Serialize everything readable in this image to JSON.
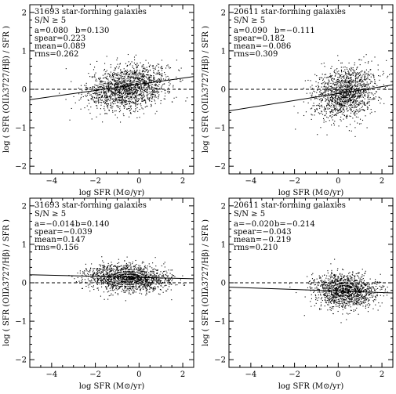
{
  "chart_data": [
    {
      "type": "scatter",
      "title": "31693 star-forming galaxies",
      "subtitle": "S/N ≥ 5",
      "xlabel": "log SFR (M⊙/yr)",
      "ylabel": "log ( SFR (OIIλ3727/Hβ) / SFR )",
      "xlim": [
        -5,
        2.5
      ],
      "ylim": [
        -2.2,
        2.2
      ],
      "xticks": [
        -4,
        -2,
        0,
        2
      ],
      "yticks": [
        -2,
        -1,
        0,
        1,
        2
      ],
      "stats": [
        "a=0.080",
        "b=0.130",
        "spear=0.223",
        "mean=0.089",
        "rms=0.262"
      ],
      "fit": {
        "a": 0.08,
        "b": 0.13
      },
      "cloud": {
        "x_center": -0.5,
        "y_center": 0.05,
        "x_spread": 0.9,
        "y_spread": 0.27,
        "n": 1800
      },
      "reference_line_y": 0
    },
    {
      "type": "scatter",
      "title": "20611 star-forming galaxies",
      "subtitle": "S/N ≥ 5",
      "xlabel": "log SFR (M⊙/yr)",
      "ylabel": "log ( SFR (OIIλ3727/Hβ) / SFR )",
      "xlim": [
        -5,
        2.5
      ],
      "ylim": [
        -2.2,
        2.2
      ],
      "xticks": [
        -4,
        -2,
        0,
        2
      ],
      "yticks": [
        -2,
        -1,
        0,
        1,
        2
      ],
      "stats": [
        "a=0.090",
        "b=−0.111",
        "spear=0.182",
        "mean=−0.086",
        "rms=0.309"
      ],
      "fit": {
        "a": 0.09,
        "b": -0.111
      },
      "cloud": {
        "x_center": 0.3,
        "y_center": -0.1,
        "x_spread": 0.7,
        "y_spread": 0.32,
        "n": 1500
      },
      "reference_line_y": 0
    },
    {
      "type": "scatter",
      "title": "31693 star-forming galaxies",
      "subtitle": "S/N ≥ 5",
      "xlabel": "log SFR (M⊙/yr)",
      "ylabel": "log ( SFR (OIIλ3727/Hβ) / SFR )",
      "xlim": [
        -5,
        2.5
      ],
      "ylim": [
        -2.2,
        2.2
      ],
      "xticks": [
        -4,
        -2,
        0,
        2
      ],
      "yticks": [
        -2,
        -1,
        0,
        1,
        2
      ],
      "stats": [
        "a=−0.014",
        "b=0.140",
        "spear=−0.039",
        "mean=0.147",
        "rms=0.156"
      ],
      "fit": {
        "a": -0.014,
        "b": 0.14
      },
      "cloud": {
        "x_center": -0.5,
        "y_center": 0.12,
        "x_spread": 0.9,
        "y_spread": 0.17,
        "n": 1800
      },
      "reference_line_y": 0
    },
    {
      "type": "scatter",
      "title": "20611 star-forming galaxies",
      "subtitle": "S/N ≥ 5",
      "xlabel": "log SFR (M⊙/yr)",
      "ylabel": "log ( SFR (OIIλ3727/Hβ) / SFR )",
      "xlim": [
        -5,
        2.5
      ],
      "ylim": [
        -2.2,
        2.2
      ],
      "xticks": [
        -4,
        -2,
        0,
        2
      ],
      "yticks": [
        -2,
        -1,
        0,
        1,
        2
      ],
      "stats": [
        "a=−0.020",
        "b=−0.214",
        "spear=−0.043",
        "mean=−0.219",
        "rms=0.210"
      ],
      "fit": {
        "a": -0.02,
        "b": -0.214
      },
      "cloud": {
        "x_center": 0.3,
        "y_center": -0.22,
        "x_spread": 0.7,
        "y_spread": 0.22,
        "n": 1500
      },
      "reference_line_y": 0
    }
  ]
}
